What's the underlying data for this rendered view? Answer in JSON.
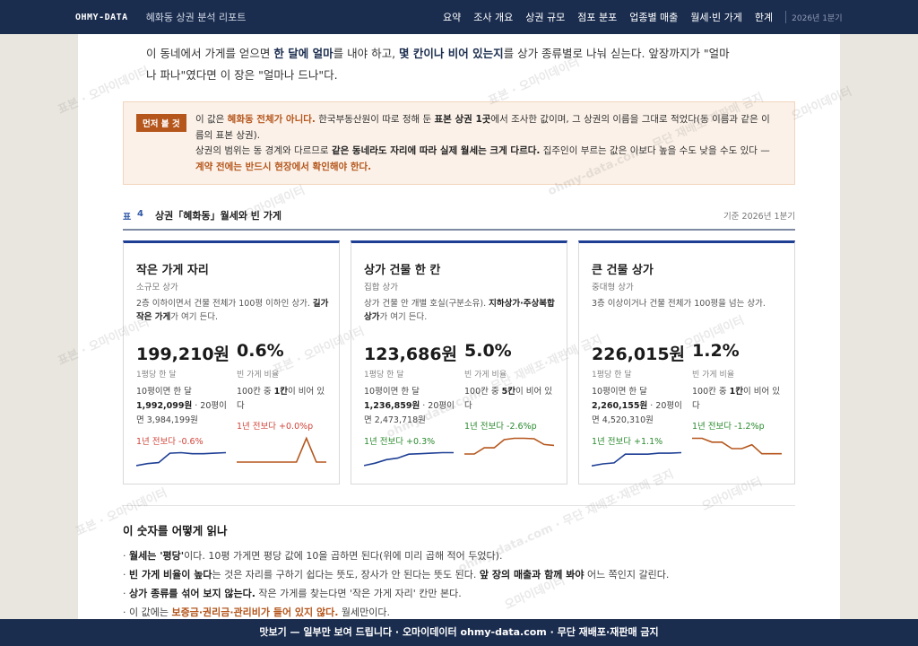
{
  "nav": {
    "brand": "OHMY-DATA",
    "report_title": "혜화동 상권 분석 리포트",
    "items": [
      "요약",
      "조사 개요",
      "상권 규모",
      "점포 분포",
      "업종별 매출",
      "월세·빈 가게",
      "한계"
    ],
    "period": "2026년 1분기"
  },
  "intro": {
    "p1": "이 동네에서 가게를 얻으면 ",
    "b1": "한 달에 얼마",
    "p2": "를 내야 하고, ",
    "b2": "몇 칸이나 비어 있는지",
    "p3": "를 상가 종류별로 나눠 싣는다. 앞장까지가 \"얼마나 파나\"였다면 이 장은 \"얼마나 드나\"다."
  },
  "note": {
    "tag": "먼저 볼 것",
    "s1": "이 값은 ",
    "s1_hl": "혜화동 전체가 아니다.",
    "s2": " 한국부동산원이 따로 정해 둔 ",
    "s2_b": "표본 상권 1곳",
    "s3": "에서 조사한 값이며, 그 상권의 이름을 그대로 적었다(동 이름과 같은 이름의 표본 상권).",
    "s4": "상권의 범위는 동 경계와 다르므로 ",
    "s4_b": "같은 동네라도 자리에 따라 실제 월세는 크게 다르다.",
    "s5": " 집주인이 부르는 값은 이보다 높을 수도 낮을 수도 있다 — ",
    "s5_hl": "계약 전에는 반드시 현장에서 확인해야 한다."
  },
  "table": {
    "label": "표",
    "num": "4",
    "title": "상권「혜화동」월세와 빈 가게",
    "date": "기준 2026년 1분기"
  },
  "cards": [
    {
      "title": "작은 가게 자리",
      "sub": "소규모 상가",
      "desc1": "2층 이하이면서 건물 전체가 100평 이하인 상가. ",
      "desc_b": "길가 작은 가게",
      "desc2": "가 여기 든다.",
      "price": "199,210원",
      "price_label": "1평당 한 달",
      "d1a": "10평이면 한 달 ",
      "d1b": "1,992,099원",
      "d1c": " · 20평이면 3,984,199원",
      "change1": "1년 전보다 -0.6%",
      "ratio": "0.6%",
      "ratio_label": "빈 가게 비율",
      "d2a": "100칸 중 ",
      "d2b": "1칸",
      "d2c": "이 비어 있다",
      "change2": "1년 전보다 +0.0%p",
      "rent_trend": [
        2,
        2.4,
        2.6,
        4.5,
        4.6,
        4.4,
        4.4,
        4.5,
        4.6
      ],
      "vacancy_trend": [
        0.6,
        0.6,
        0.6,
        0.6,
        0.6,
        0.6,
        0.6,
        2.6,
        0.6,
        0.6
      ]
    },
    {
      "title": "상가 건물 한 칸",
      "sub": "집합 상가",
      "desc1": "상가 건물 안 개별 호실(구분소유). ",
      "desc_b": "지하상가·주상복합 상가",
      "desc2": "가 여기 든다.",
      "price": "123,686원",
      "price_label": "1평당 한 달",
      "d1a": "10평이면 한 달 ",
      "d1b": "1,236,859원",
      "d1c": " · 20평이면 2,473,718원",
      "change1": "1년 전보다 +0.3%",
      "ratio": "5.0%",
      "ratio_label": "빈 가게 비율",
      "d2a": "100칸 중 ",
      "d2b": "5칸",
      "d2c": "이 비어 있다",
      "change2": "1년 전보다 -2.6%p",
      "rent_trend": [
        2,
        2.5,
        3.2,
        3.5,
        4.3,
        4.4,
        4.5,
        4.6,
        4.6
      ],
      "vacancy_trend": [
        3.2,
        3.2,
        4.5,
        4.5,
        6.2,
        6.5,
        6.5,
        6.4,
        5.2,
        5.0
      ]
    },
    {
      "title": "큰 건물 상가",
      "sub": "중대형 상가",
      "desc1": "3층 이상이거나 건물 전체가 100평을 넘는 상가.",
      "desc_b": "",
      "desc2": "",
      "price": "226,015원",
      "price_label": "1평당 한 달",
      "d1a": "10평이면 한 달 ",
      "d1b": "2,260,155원",
      "d1c": " · 20평이면 4,520,310원",
      "change1": "1년 전보다 +1.1%",
      "ratio": "1.2%",
      "ratio_label": "빈 가게 비율",
      "d2a": "100칸 중 ",
      "d2b": "1칸",
      "d2c": "이 비어 있다",
      "change2": "1년 전보다 -1.2%p",
      "rent_trend": [
        2,
        2.4,
        2.6,
        4.4,
        4.4,
        4.4,
        4.6,
        4.6,
        4.7
      ],
      "vacancy_trend": [
        2.4,
        2.4,
        2.1,
        2.1,
        1.6,
        1.6,
        1.9,
        1.2,
        1.2,
        1.2
      ]
    }
  ],
  "how": {
    "title": "이 숫자를 어떻게 읽나",
    "items": [
      {
        "a": "· ",
        "b": "월세는 '평당'",
        "c": "이다. 10평 가게면 평당 값에 10을 곱하면 된다(위에 미리 곱해 적어 두었다).",
        "d": "",
        "e": ""
      },
      {
        "a": "· ",
        "b": "빈 가게 비율이 높다",
        "c": "는 것은 자리를 구하기 쉽다는 뜻도, 장사가 안 된다는 뜻도 된다. ",
        "d": "앞 장의 매출과 함께 봐야",
        "e": " 어느 쪽인지 갈린다."
      },
      {
        "a": "· ",
        "b": "상가 종류를 섞어 보지 않는다.",
        "c": " 작은 가게를 찾는다면 '작은 가게 자리' 칸만 본다.",
        "d": "",
        "e": ""
      },
      {
        "a": "· 이 값에는 ",
        "b": "",
        "c": "",
        "d": "보증금·권리금·관리비가 들어 있지 않다.",
        "e": " 월세만이다."
      }
    ]
  },
  "footer": "맛보기 — 일부만 보여 드립니다 · 오마이데이터 ohmy-data.com · 무단 재배포·재판매 금지",
  "watermark": {
    "a": "표본 · 오마이데이터",
    "b": "ohmy-data.com · 무단 재배포·재판매 금지",
    "c": "오마이데이터"
  },
  "colors": {
    "navy": "#1b2d4f",
    "accent": "#b5561c",
    "rent_line": "#1e3f94",
    "vacancy_line": "#b5561c",
    "up": "#d0453a",
    "down": "#2a8a2e"
  }
}
